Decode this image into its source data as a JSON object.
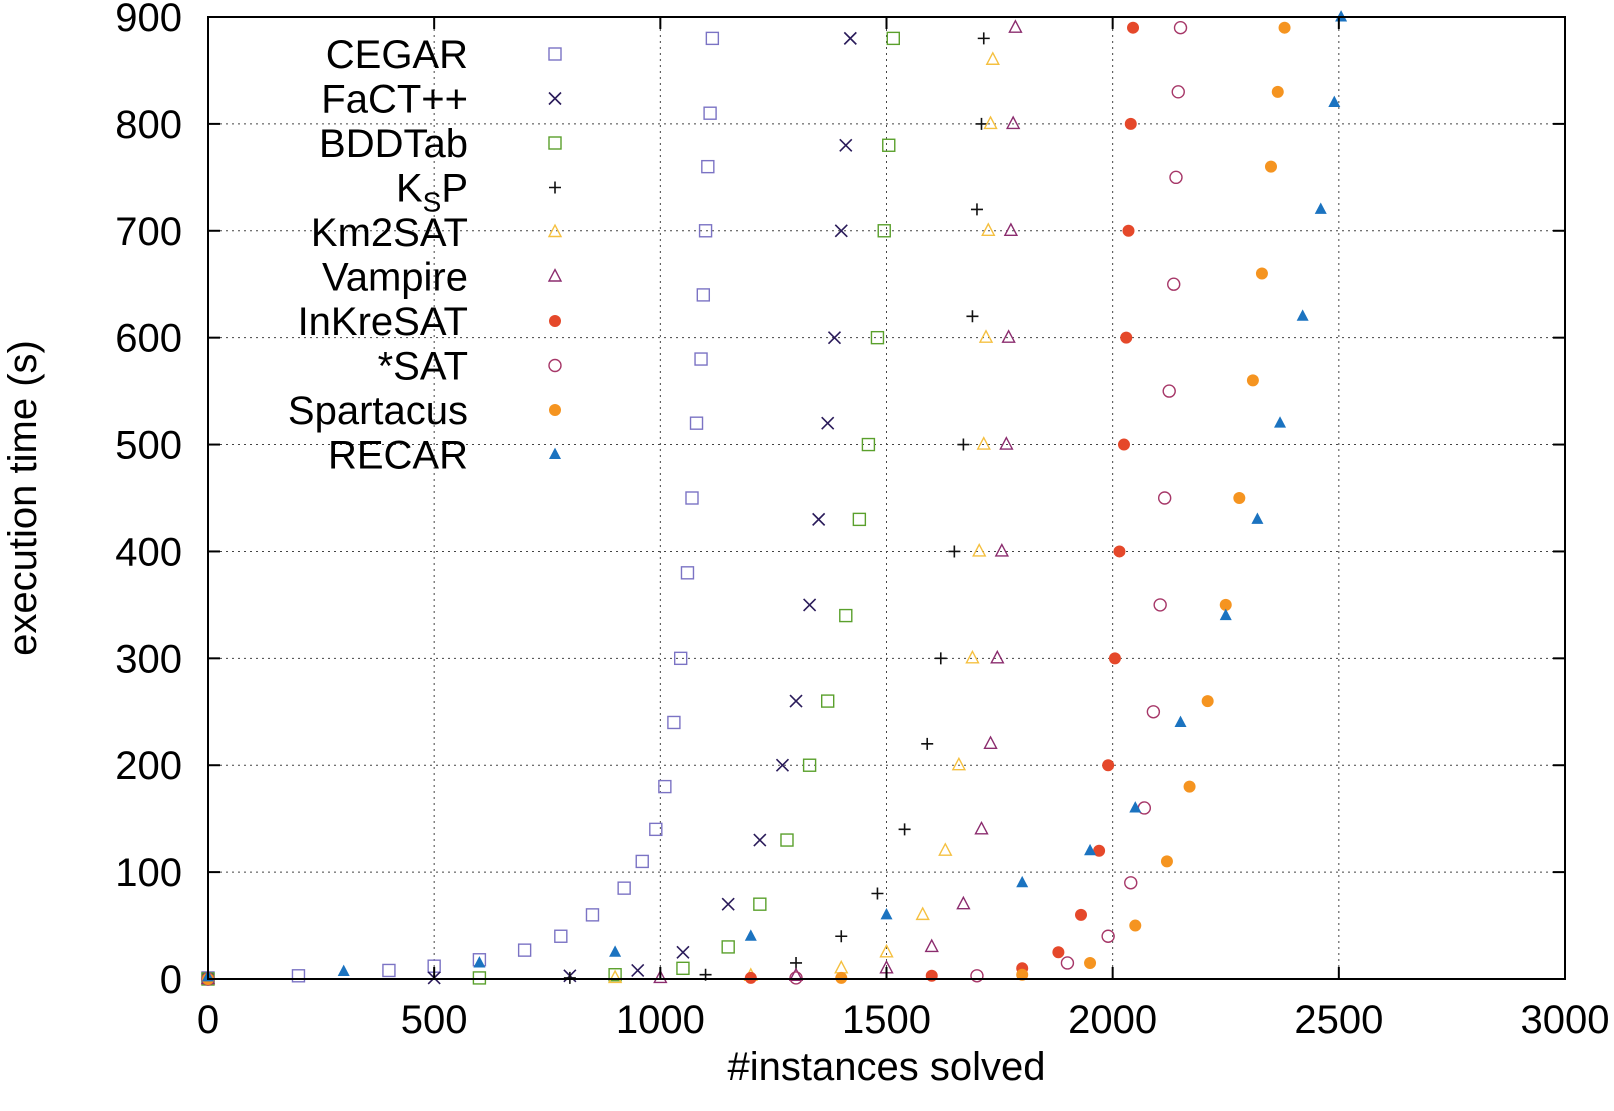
{
  "chart_data": {
    "type": "scatter",
    "title": "",
    "xlabel": "#instances solved",
    "ylabel": "execution time (s)",
    "xlim": [
      0,
      3000
    ],
    "ylim": [
      0,
      900
    ],
    "xticks": [
      0,
      500,
      1000,
      1500,
      2000,
      2500,
      3000
    ],
    "yticks": [
      0,
      100,
      200,
      300,
      400,
      500,
      600,
      700,
      800,
      900
    ],
    "grid": true,
    "legend_position": "top-left",
    "series": [
      {
        "name": "CEGAR",
        "label_main": "CEGAR",
        "label_sub": "",
        "label_tail": "",
        "marker": "square-open",
        "color": "#7b73c4",
        "points": [
          [
            0,
            1
          ],
          [
            200,
            3
          ],
          [
            400,
            8
          ],
          [
            500,
            12
          ],
          [
            600,
            18
          ],
          [
            700,
            27
          ],
          [
            780,
            40
          ],
          [
            850,
            60
          ],
          [
            920,
            85
          ],
          [
            960,
            110
          ],
          [
            990,
            140
          ],
          [
            1010,
            180
          ],
          [
            1030,
            240
          ],
          [
            1045,
            300
          ],
          [
            1060,
            380
          ],
          [
            1070,
            450
          ],
          [
            1080,
            520
          ],
          [
            1090,
            580
          ],
          [
            1095,
            640
          ],
          [
            1100,
            700
          ],
          [
            1105,
            760
          ],
          [
            1110,
            810
          ],
          [
            1115,
            880
          ]
        ]
      },
      {
        "name": "FaCT++",
        "label_main": "FaCT++",
        "label_sub": "",
        "label_tail": "",
        "marker": "cross",
        "color": "#2a1b5a",
        "points": [
          [
            0,
            0
          ],
          [
            500,
            1
          ],
          [
            800,
            3
          ],
          [
            950,
            8
          ],
          [
            1050,
            25
          ],
          [
            1150,
            70
          ],
          [
            1220,
            130
          ],
          [
            1270,
            200
          ],
          [
            1300,
            260
          ],
          [
            1330,
            350
          ],
          [
            1350,
            430
          ],
          [
            1370,
            520
          ],
          [
            1385,
            600
          ],
          [
            1400,
            700
          ],
          [
            1410,
            780
          ],
          [
            1420,
            880
          ]
        ]
      },
      {
        "name": "BDDTab",
        "label_main": "BDDTab",
        "label_sub": "",
        "label_tail": "",
        "marker": "square-open",
        "color": "#5aa02c",
        "points": [
          [
            0,
            0
          ],
          [
            600,
            1
          ],
          [
            900,
            4
          ],
          [
            1050,
            10
          ],
          [
            1150,
            30
          ],
          [
            1220,
            70
          ],
          [
            1280,
            130
          ],
          [
            1330,
            200
          ],
          [
            1370,
            260
          ],
          [
            1410,
            340
          ],
          [
            1440,
            430
          ],
          [
            1460,
            500
          ],
          [
            1480,
            600
          ],
          [
            1495,
            700
          ],
          [
            1505,
            780
          ],
          [
            1515,
            880
          ]
        ]
      },
      {
        "name": "KSP",
        "label_main": "K",
        "label_sub": "S",
        "label_tail": "P",
        "marker": "plus",
        "color": "#111111",
        "points": [
          [
            0,
            0
          ],
          [
            800,
            1
          ],
          [
            1100,
            4
          ],
          [
            1300,
            15
          ],
          [
            1400,
            40
          ],
          [
            1480,
            80
          ],
          [
            1540,
            140
          ],
          [
            1590,
            220
          ],
          [
            1620,
            300
          ],
          [
            1650,
            400
          ],
          [
            1670,
            500
          ],
          [
            1690,
            620
          ],
          [
            1700,
            720
          ],
          [
            1710,
            800
          ],
          [
            1715,
            880
          ]
        ]
      },
      {
        "name": "Km2SAT",
        "label_main": "Km2SAT",
        "label_sub": "",
        "label_tail": "",
        "marker": "triangle-open",
        "color": "#f5c040",
        "points": [
          [
            0,
            0
          ],
          [
            900,
            1
          ],
          [
            1200,
            3
          ],
          [
            1400,
            10
          ],
          [
            1500,
            25
          ],
          [
            1580,
            60
          ],
          [
            1630,
            120
          ],
          [
            1660,
            200
          ],
          [
            1690,
            300
          ],
          [
            1705,
            400
          ],
          [
            1715,
            500
          ],
          [
            1720,
            600
          ],
          [
            1725,
            700
          ],
          [
            1730,
            800
          ],
          [
            1735,
            860
          ]
        ]
      },
      {
        "name": "Vampire",
        "label_main": "Vampire",
        "label_sub": "",
        "label_tail": "",
        "marker": "triangle-open",
        "color": "#8b2c6e",
        "points": [
          [
            0,
            0
          ],
          [
            1000,
            1
          ],
          [
            1300,
            3
          ],
          [
            1500,
            10
          ],
          [
            1600,
            30
          ],
          [
            1670,
            70
          ],
          [
            1710,
            140
          ],
          [
            1730,
            220
          ],
          [
            1745,
            300
          ],
          [
            1755,
            400
          ],
          [
            1765,
            500
          ],
          [
            1770,
            600
          ],
          [
            1775,
            700
          ],
          [
            1780,
            800
          ],
          [
            1785,
            890
          ]
        ]
      },
      {
        "name": "InKreSAT",
        "label_main": "InKreSAT",
        "label_sub": "",
        "label_tail": "",
        "marker": "circle-filled",
        "color": "#e5482a",
        "points": [
          [
            0,
            0
          ],
          [
            1200,
            1
          ],
          [
            1600,
            3
          ],
          [
            1800,
            10
          ],
          [
            1880,
            25
          ],
          [
            1930,
            60
          ],
          [
            1970,
            120
          ],
          [
            1990,
            200
          ],
          [
            2005,
            300
          ],
          [
            2015,
            400
          ],
          [
            2025,
            500
          ],
          [
            2030,
            600
          ],
          [
            2035,
            700
          ],
          [
            2040,
            800
          ],
          [
            2045,
            890
          ]
        ]
      },
      {
        "name": "*SAT",
        "label_main": "*SAT",
        "label_sub": "",
        "label_tail": "",
        "marker": "circle-open",
        "color": "#a63768",
        "points": [
          [
            0,
            0
          ],
          [
            1300,
            1
          ],
          [
            1700,
            3
          ],
          [
            1900,
            15
          ],
          [
            1990,
            40
          ],
          [
            2040,
            90
          ],
          [
            2070,
            160
          ],
          [
            2090,
            250
          ],
          [
            2105,
            350
          ],
          [
            2115,
            450
          ],
          [
            2125,
            550
          ],
          [
            2135,
            650
          ],
          [
            2140,
            750
          ],
          [
            2145,
            830
          ],
          [
            2150,
            890
          ]
        ]
      },
      {
        "name": "Spartacus",
        "label_main": "Spartacus",
        "label_sub": "",
        "label_tail": "",
        "marker": "circle-filled",
        "color": "#f59420",
        "points": [
          [
            0,
            0
          ],
          [
            1400,
            1
          ],
          [
            1800,
            4
          ],
          [
            1950,
            15
          ],
          [
            2050,
            50
          ],
          [
            2120,
            110
          ],
          [
            2170,
            180
          ],
          [
            2210,
            260
          ],
          [
            2250,
            350
          ],
          [
            2280,
            450
          ],
          [
            2310,
            560
          ],
          [
            2330,
            660
          ],
          [
            2350,
            760
          ],
          [
            2365,
            830
          ],
          [
            2380,
            890
          ]
        ]
      },
      {
        "name": "RECAR",
        "label_main": "RECAR",
        "label_sub": "",
        "label_tail": "",
        "marker": "triangle-filled",
        "color": "#1b73c0",
        "points": [
          [
            0,
            2
          ],
          [
            300,
            7
          ],
          [
            600,
            15
          ],
          [
            900,
            25
          ],
          [
            1200,
            40
          ],
          [
            1500,
            60
          ],
          [
            1800,
            90
          ],
          [
            1950,
            120
          ],
          [
            2050,
            160
          ],
          [
            2150,
            240
          ],
          [
            2250,
            340
          ],
          [
            2320,
            430
          ],
          [
            2370,
            520
          ],
          [
            2420,
            620
          ],
          [
            2460,
            720
          ],
          [
            2490,
            820
          ],
          [
            2505,
            900
          ]
        ]
      }
    ]
  }
}
